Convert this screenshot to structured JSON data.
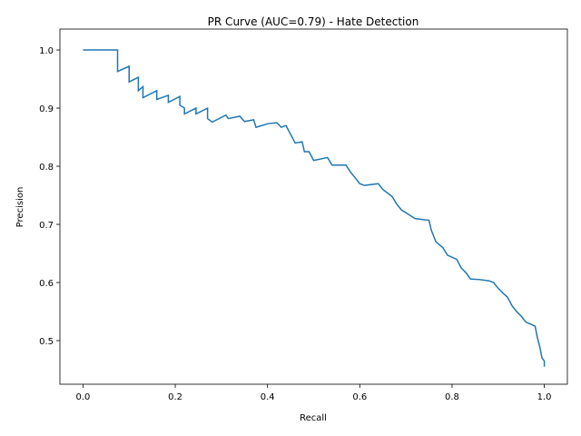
{
  "chart_data": {
    "type": "line",
    "title": "PR Curve (AUC=0.79) - Hate Detection",
    "xlabel": "Recall",
    "ylabel": "Precision",
    "color": "#1f77b4",
    "x": [
      0,
      0.075,
      0.075,
      0.1,
      0.1,
      0.12,
      0.12,
      0.13,
      0.13,
      0.16,
      0.16,
      0.185,
      0.185,
      0.21,
      0.21,
      0.22,
      0.22,
      0.245,
      0.245,
      0.27,
      0.27,
      0.28,
      0.31,
      0.315,
      0.34,
      0.35,
      0.37,
      0.375,
      0.4,
      0.42,
      0.43,
      0.44,
      0.45,
      0.46,
      0.475,
      0.48,
      0.49,
      0.5,
      0.53,
      0.54,
      0.57,
      0.58,
      0.59,
      0.6,
      0.61,
      0.64,
      0.65,
      0.67,
      0.68,
      0.69,
      0.7,
      0.72,
      0.75,
      0.755,
      0.765,
      0.78,
      0.79,
      0.81,
      0.82,
      0.83,
      0.84,
      0.86,
      0.88,
      0.89,
      0.9,
      0.91,
      0.92,
      0.93,
      0.94,
      0.95,
      0.96,
      0.98,
      0.985,
      0.99,
      0.995,
      1.0,
      1.0
    ],
    "values": [
      1.0,
      1.0,
      0.963,
      0.972,
      0.945,
      0.953,
      0.93,
      0.937,
      0.918,
      0.93,
      0.915,
      0.922,
      0.91,
      0.92,
      0.905,
      0.9,
      0.89,
      0.9,
      0.89,
      0.9,
      0.882,
      0.876,
      0.888,
      0.882,
      0.886,
      0.877,
      0.88,
      0.867,
      0.873,
      0.875,
      0.867,
      0.87,
      0.855,
      0.84,
      0.842,
      0.825,
      0.825,
      0.81,
      0.815,
      0.802,
      0.802,
      0.79,
      0.78,
      0.77,
      0.767,
      0.77,
      0.76,
      0.748,
      0.735,
      0.725,
      0.72,
      0.71,
      0.707,
      0.69,
      0.67,
      0.66,
      0.647,
      0.64,
      0.625,
      0.617,
      0.606,
      0.605,
      0.603,
      0.6,
      0.59,
      0.582,
      0.575,
      0.56,
      0.55,
      0.542,
      0.532,
      0.525,
      0.505,
      0.49,
      0.47,
      0.465,
      0.455
    ],
    "xlim": [
      -0.05,
      1.05
    ],
    "xticks": [
      {
        "value": 0,
        "label": "0.0"
      },
      0.2,
      0.4,
      0.6,
      0.8,
      {
        "value": 1,
        "label": "1.0"
      }
    ],
    "ylim": [
      0.425,
      1.036
    ],
    "yticks": [
      0.5,
      0.6,
      0.7,
      0.8,
      0.9,
      {
        "value": 1,
        "label": "1.0"
      }
    ]
  }
}
